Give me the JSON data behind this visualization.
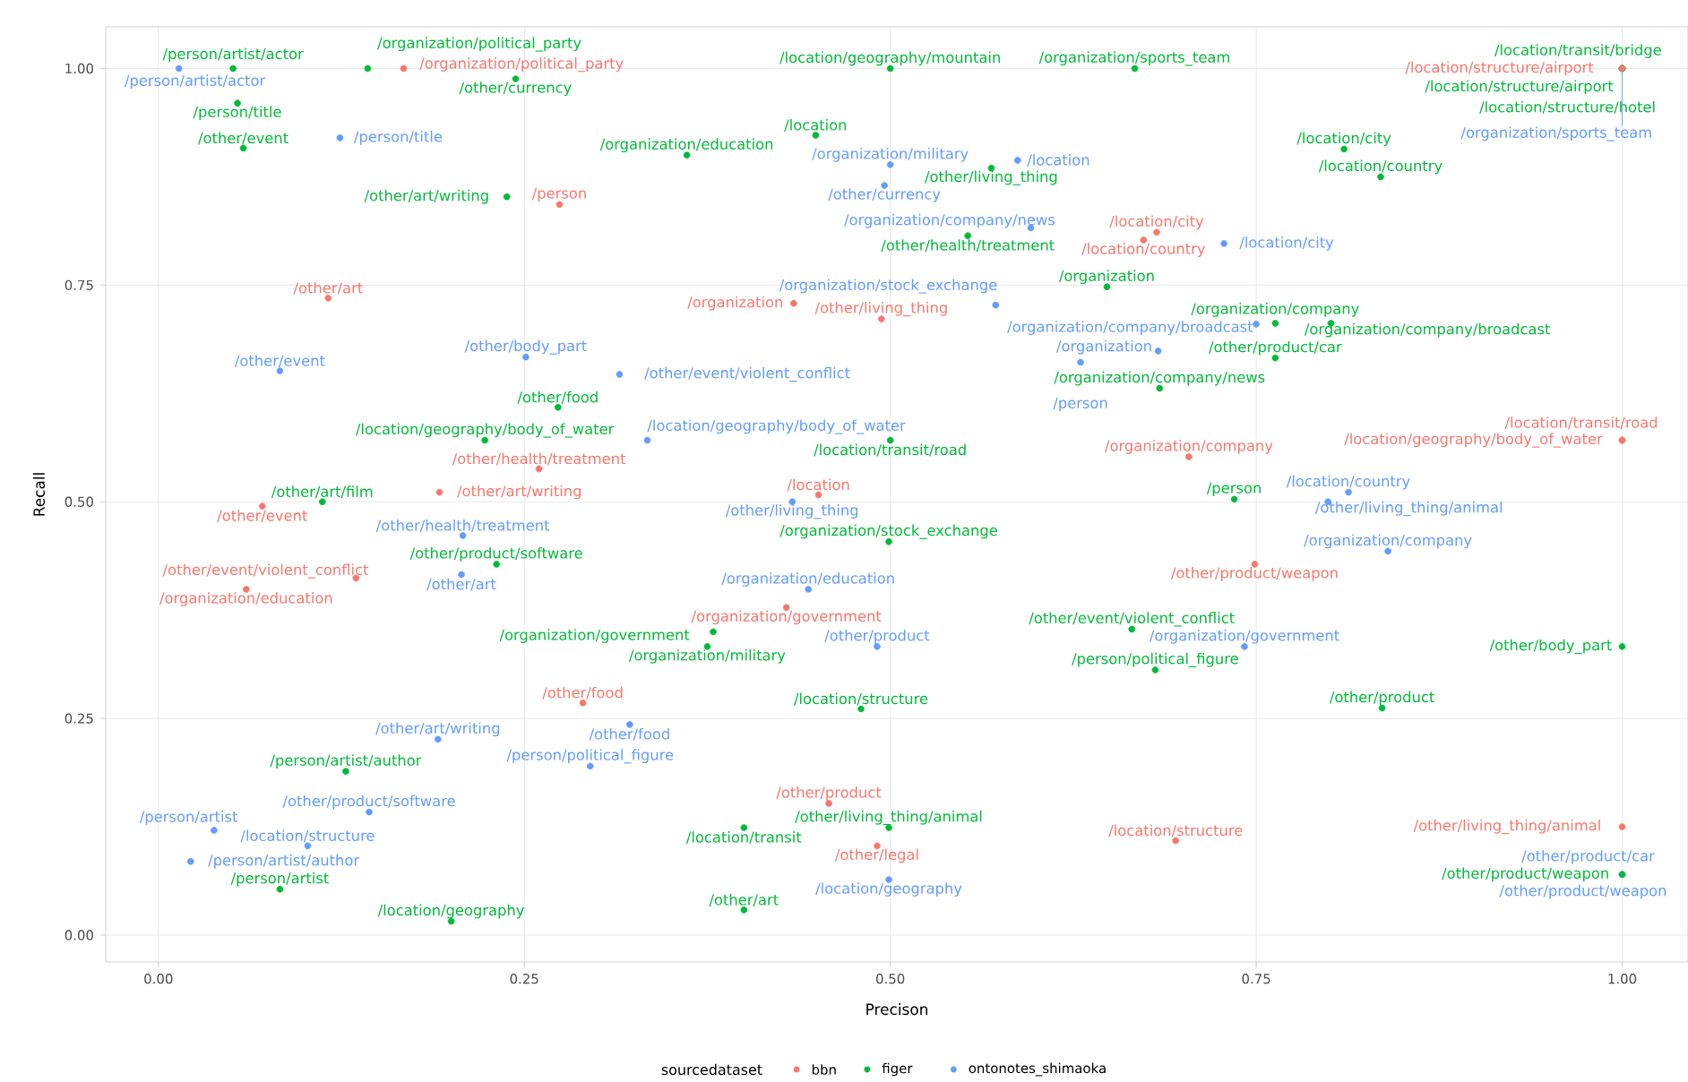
{
  "chart_data": {
    "type": "scatter",
    "xlabel": "Precison",
    "ylabel": "Recall",
    "legend_title": "sourcedataset",
    "legend": "bottom",
    "grid": true,
    "marker": "circle",
    "xlim": [
      -0.036,
      1.045
    ],
    "ylim": [
      -0.031,
      1.048
    ],
    "xticks": [
      {
        "value": 0,
        "label": "0.00"
      },
      {
        "value": 0.25,
        "label": "0.25"
      },
      {
        "value": 0.5,
        "label": "0.50"
      },
      {
        "value": 0.75,
        "label": "0.75"
      },
      {
        "value": 1,
        "label": "1.00"
      }
    ],
    "yticks": [
      {
        "value": 0,
        "label": "0.00"
      },
      {
        "value": 0.25,
        "label": "0.25"
      },
      {
        "value": 0.5,
        "label": "0.50"
      },
      {
        "value": 0.75,
        "label": "0.75"
      },
      {
        "value": 1,
        "label": "1.00"
      }
    ],
    "series": [
      {
        "name": "bbn",
        "color": "#f8766d",
        "x": [
          0.1675,
          0.274,
          0.116,
          0.26,
          0.673,
          0.682,
          0.434,
          0.494,
          1.0,
          1.0,
          1.0,
          0.704,
          0.071,
          0.192,
          0.135,
          0.06,
          0.29,
          0.451,
          0.429,
          0.458,
          0.491,
          0.749,
          0.695,
          1.0
        ],
        "values": [
          1.0,
          0.843,
          0.735,
          0.538,
          0.802,
          0.811,
          0.729,
          0.711,
          1.0,
          0.571,
          0.571,
          0.552,
          0.495,
          0.511,
          0.412,
          0.399,
          0.268,
          0.508,
          0.378,
          0.152,
          0.103,
          0.428,
          0.109,
          0.125
        ],
        "value_labels": [
          "/organization/political_party",
          "/person",
          "/other/art",
          "/other/health/treatment",
          "/location/country",
          "/location/city",
          "/organization",
          "/other/living_thing",
          "/location/structure/airport",
          "/location/geography/body_of_water",
          "/location/transit/road",
          "/organization/company",
          "/other/event",
          "/other/art/writing",
          "/other/event/violent_conflict",
          "/organization/education",
          "/other/food",
          "/location",
          "/organization/government",
          "/other/product",
          "/other/legal",
          "/other/product/weapon",
          "/location/structure",
          "/other/living_thing/animal"
        ]
      },
      {
        "name": "figer",
        "color": "#00ba38",
        "x": [
          0.143,
          0.051,
          0.244,
          0.054,
          0.058,
          0.238,
          0.361,
          0.449,
          0.273,
          0.223,
          0.5,
          0.667,
          0.569,
          0.553,
          0.648,
          0.5,
          1.0,
          1.0,
          1.0,
          0.81,
          0.835,
          0.763,
          0.801,
          0.763,
          0.684,
          0.112,
          0.231,
          0.128,
          0.083,
          0.2,
          0.499,
          0.379,
          0.375,
          0.48,
          0.4,
          0.499,
          0.4,
          0.665,
          0.681,
          0.735,
          1.0,
          0.836,
          1.0
        ],
        "values": [
          1.0,
          1.0,
          0.988,
          0.96,
          0.908,
          0.852,
          0.9,
          0.923,
          0.609,
          0.571,
          1.0,
          1.0,
          0.885,
          0.807,
          0.748,
          0.571,
          1.0,
          1.0,
          1.0,
          0.907,
          0.875,
          0.706,
          0.706,
          0.666,
          0.631,
          0.5,
          0.428,
          0.189,
          0.053,
          0.016,
          0.454,
          0.35,
          0.333,
          0.261,
          0.124,
          0.124,
          0.029,
          0.353,
          0.306,
          0.503,
          0.333,
          0.262,
          0.07
        ],
        "value_labels": [
          "/organization/political_party",
          "/person/artist/actor",
          "/other/currency",
          "/person/title",
          "/other/event",
          "/other/art/writing",
          "/organization/education",
          "/location",
          "/other/food",
          "/location/geography/body_of_water",
          "/location/geography/mountain",
          "/organization/sports_team",
          "/other/living_thing",
          "/other/health/treatment",
          "/organization",
          "/location/transit/road",
          "/location/transit/bridge",
          "/location/structure/airport",
          "/location/structure/hotel",
          "/location/city",
          "/location/country",
          "/organization/company",
          "/organization/company/broadcast",
          "/other/product/car",
          "/organization/company/news",
          "/other/art/film",
          "/other/product/software",
          "/person/artist/author",
          "/person/artist",
          "/location/geography",
          "/organization/stock_exchange",
          "/organization/government",
          "/organization/military",
          "/location/structure",
          "/location/transit",
          "/other/living_thing/animal",
          "/other/art",
          "/other/event/violent_conflict",
          "/person/political_figure",
          "/person",
          "/other/body_part",
          "/other/product",
          "/other/product/weapon"
        ]
      },
      {
        "name": "ontonotes_shimaoka",
        "color": "#619cff",
        "x": [
          0.014,
          0.124,
          0.083,
          0.251,
          0.315,
          0.5,
          0.587,
          0.496,
          0.596,
          0.572,
          0.683,
          0.63,
          0.334,
          1.0,
          0.728,
          0.75,
          0.208,
          0.207,
          0.191,
          0.295,
          0.144,
          0.038,
          0.102,
          0.022,
          0.322,
          0.433,
          0.444,
          0.491,
          0.499,
          0.813,
          0.799,
          0.84,
          0.742,
          1.0,
          1.0
        ],
        "values": [
          1.0,
          0.92,
          0.651,
          0.667,
          0.647,
          0.889,
          0.894,
          0.865,
          0.816,
          0.727,
          0.674,
          0.661,
          0.571,
          1.0,
          0.798,
          0.705,
          0.461,
          0.416,
          0.226,
          0.195,
          0.142,
          0.121,
          0.103,
          0.085,
          0.243,
          0.5,
          0.399,
          0.333,
          0.064,
          0.511,
          0.5,
          0.443,
          0.333,
          0.07,
          0.07
        ],
        "value_labels": [
          "/person/artist/actor",
          "/person/title",
          "/other/event",
          "/other/body_part",
          "/other/event/violent_conflict",
          "/organization/military",
          "/location",
          "/other/currency",
          "/organization/company/news",
          "/organization/stock_exchange",
          "/organization",
          "/person",
          "/location/geography/body_of_water",
          "/organization/sports_team",
          "/location/city",
          "/organization/company/broadcast",
          "/other/health/treatment",
          "/other/art",
          "/other/art/writing",
          "/person/political_figure",
          "/other/product/software",
          "/person/artist",
          "/location/structure",
          "/person/artist/author",
          "/other/food",
          "/other/living_thing",
          "/organization/education",
          "/other/product",
          "/location/geography",
          "/location/country",
          "/other/living_thing/animal",
          "/organization/company",
          "/organization/government",
          "/other/product/car",
          "/other/product/weapon"
        ]
      }
    ]
  }
}
